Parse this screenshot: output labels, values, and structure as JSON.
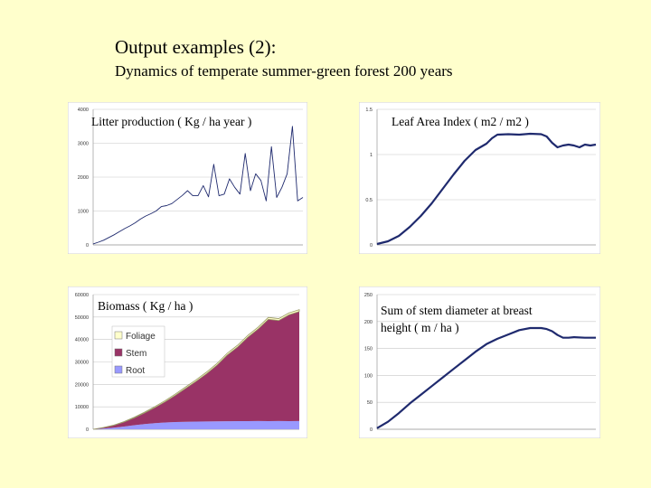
{
  "slide": {
    "title": "Output examples (2):",
    "subtitle": "Dynamics of temperate summer-green forest 200 years"
  },
  "chart_data": [
    {
      "type": "line",
      "title": "Litter production ( Kg / ha year )",
      "ylim": [
        0,
        4000
      ],
      "yticks": [
        "0",
        "1000",
        "2000",
        "3000",
        "4000"
      ],
      "xlim": [
        0,
        200
      ],
      "grid": true,
      "series": [
        {
          "color": "#1f2a6e",
          "x": [
            0,
            5,
            10,
            15,
            20,
            25,
            30,
            35,
            40,
            45,
            50,
            55,
            60,
            65,
            70,
            75,
            80,
            85,
            90,
            95,
            100,
            105,
            110,
            115,
            120,
            125,
            130,
            135,
            140,
            145,
            150,
            155,
            160,
            165,
            170,
            175,
            180,
            185,
            190,
            195,
            200
          ],
          "y": [
            30,
            80,
            140,
            220,
            300,
            390,
            480,
            560,
            650,
            760,
            850,
            920,
            1000,
            1130,
            1160,
            1220,
            1340,
            1460,
            1600,
            1450,
            1450,
            1750,
            1420,
            2380,
            1450,
            1500,
            1950,
            1700,
            1500,
            2700,
            1600,
            2100,
            1900,
            1300,
            2900,
            1400,
            1700,
            2100,
            3500,
            1300,
            1400
          ]
        }
      ]
    },
    {
      "type": "line",
      "title": "Leaf Area Index ( m2 / m2 )",
      "ylim": [
        0,
        1.5
      ],
      "yticks": [
        "0",
        "0.5",
        "1",
        "1.5"
      ],
      "xlim": [
        0,
        200
      ],
      "grid": true,
      "series": [
        {
          "color": "#1f2a6e",
          "x": [
            0,
            10,
            20,
            30,
            40,
            50,
            60,
            70,
            80,
            90,
            100,
            105,
            110,
            120,
            130,
            140,
            150,
            155,
            160,
            165,
            170,
            175,
            180,
            185,
            190,
            195,
            200
          ],
          "y": [
            0.01,
            0.04,
            0.1,
            0.2,
            0.32,
            0.46,
            0.62,
            0.78,
            0.93,
            1.05,
            1.12,
            1.18,
            1.22,
            1.225,
            1.22,
            1.23,
            1.225,
            1.2,
            1.13,
            1.08,
            1.1,
            1.11,
            1.1,
            1.08,
            1.11,
            1.1,
            1.11
          ]
        }
      ]
    },
    {
      "type": "area",
      "title": "Biomass ( Kg / ha )",
      "ylim": [
        0,
        60000
      ],
      "yticks": [
        "0",
        "10000",
        "20000",
        "30000",
        "40000",
        "50000",
        "60000"
      ],
      "xlim": [
        0,
        200
      ],
      "grid": true,
      "stacked": true,
      "legend": "top-left",
      "x": [
        0,
        10,
        20,
        30,
        40,
        50,
        60,
        70,
        80,
        90,
        100,
        110,
        120,
        130,
        140,
        150,
        160,
        170,
        180,
        190,
        200
      ],
      "series": [
        {
          "name": "Root",
          "color": "#9999ff",
          "values": [
            0,
            300,
            700,
            1200,
            1800,
            2300,
            2700,
            3000,
            3200,
            3300,
            3400,
            3450,
            3500,
            3550,
            3600,
            3600,
            3650,
            3600,
            3650,
            3600,
            3650
          ]
        },
        {
          "name": "Stem",
          "color": "#993366",
          "values": [
            0,
            400,
            1000,
            2000,
            3300,
            5000,
            7000,
            9300,
            12000,
            15000,
            18000,
            21300,
            25000,
            29500,
            33000,
            37400,
            41000,
            45400,
            44800,
            47400,
            48800
          ]
        },
        {
          "name": "Foliage",
          "color": "#ffffcc",
          "values": [
            0,
            80,
            150,
            230,
            300,
            380,
            450,
            520,
            580,
            630,
            680,
            720,
            750,
            780,
            800,
            820,
            830,
            840,
            850,
            850,
            850
          ]
        }
      ]
    },
    {
      "type": "line",
      "title": "Sum of stem diameter at breast height ( m / ha )",
      "ylim": [
        0,
        250
      ],
      "yticks": [
        "0",
        "50",
        "100",
        "150",
        "200",
        "250"
      ],
      "xlim": [
        0,
        200
      ],
      "grid": true,
      "series": [
        {
          "color": "#1f2a6e",
          "x": [
            0,
            10,
            20,
            30,
            40,
            50,
            60,
            70,
            80,
            90,
            100,
            110,
            120,
            130,
            140,
            150,
            155,
            160,
            165,
            170,
            175,
            180,
            190,
            200
          ],
          "y": [
            2,
            14,
            30,
            48,
            64,
            80,
            96,
            112,
            128,
            144,
            158,
            168,
            176,
            184,
            188,
            188,
            186,
            182,
            175,
            170,
            170,
            171,
            170,
            170
          ]
        }
      ]
    }
  ]
}
